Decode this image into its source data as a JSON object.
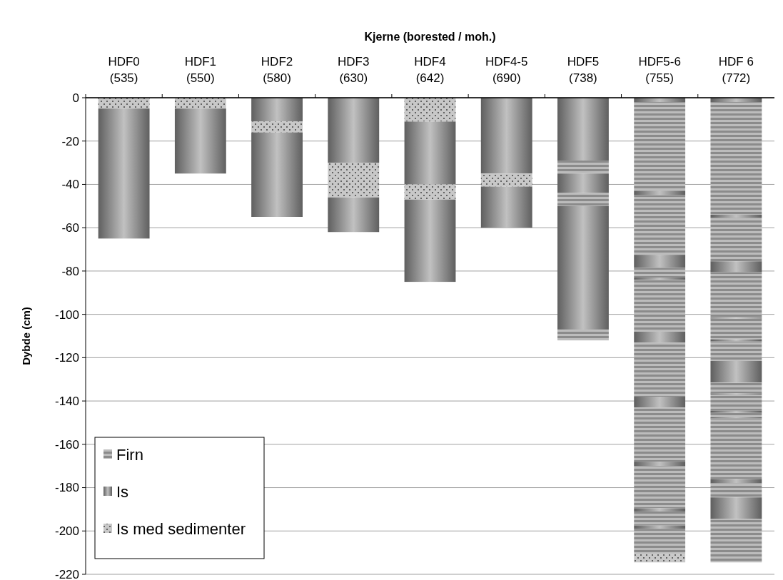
{
  "chart_data": {
    "type": "bar",
    "stacked": true,
    "xlabel": "Kjerne (borested / moh.)",
    "ylabel": "Dybde (cm)",
    "categories": [
      "HDF0\n(535)",
      "HDF1\n(550)",
      "HDF2\n(580)",
      "HDF3\n(630)",
      "HDF4\n(642)",
      "HDF4-5\n(690)",
      "HDF5\n(738)",
      "HDF5-6\n(755)",
      "HDF 6\n(772)"
    ],
    "ylim": [
      -220,
      0
    ],
    "yticks": [
      -220,
      -200,
      -180,
      -160,
      -140,
      -120,
      -100,
      -80,
      -60,
      -40,
      -20,
      0
    ],
    "grid": "y",
    "legend": "bottom left",
    "series": [
      {
        "name": "Firn",
        "color": "#a6a6a6",
        "values": [
          null,
          null,
          null,
          null,
          null,
          null,
          null,
          null,
          null
        ]
      },
      {
        "name": "Is",
        "color": "#8c8c8c",
        "values": [
          null,
          null,
          null,
          null,
          null,
          null,
          null,
          null,
          null
        ]
      },
      {
        "name": "Is med sedimenter",
        "color": "#c8c8c8",
        "values": [
          null,
          null,
          null,
          null,
          null,
          null,
          null,
          null,
          null
        ]
      },
      {
        "values": [
          -5,
          -5,
          -11,
          -30,
          -11,
          -35,
          -29,
          -2,
          -2
        ],
        "colors": [
          "#c8c8c8",
          "#c8c8c8",
          "#8c8c8c",
          "#8c8c8c",
          "#c8c8c8",
          "#8c8c8c",
          "#8c8c8c",
          "#8c8c8c",
          "#8c8c8c"
        ]
      },
      {
        "values": [
          -60,
          -30,
          -5,
          -16,
          -29,
          -6,
          -6,
          -41,
          -52
        ],
        "colors": [
          "#8c8c8c",
          "#8c8c8c",
          "#c8c8c8",
          "#c8c8c8",
          "#8c8c8c",
          "#c8c8c8",
          "#a6a6a6",
          "#a6a6a6",
          "#a6a6a6"
        ]
      },
      {
        "values": [
          null,
          null,
          -39,
          -16,
          -7,
          -19,
          -9,
          -2,
          -1.5
        ],
        "colors": [
          null,
          null,
          "#8c8c8c",
          "#8c8c8c",
          "#c8c8c8",
          "#8c8c8c",
          "#8c8c8c",
          "#8c8c8c",
          "#8c8c8c"
        ]
      },
      {
        "values": [
          null,
          null,
          null,
          null,
          -38,
          null,
          -6,
          -27.5,
          -20
        ],
        "colors": [
          null,
          null,
          null,
          null,
          "#8c8c8c",
          null,
          "#a6a6a6",
          "#a6a6a6",
          "#a6a6a6"
        ]
      },
      {
        "values": [
          null,
          null,
          null,
          null,
          null,
          null,
          -57,
          -6,
          -5
        ],
        "colors": [
          null,
          null,
          null,
          null,
          null,
          null,
          "#8c8c8c",
          "#8c8c8c",
          "#8c8c8c"
        ]
      },
      {
        "values": [
          null,
          null,
          null,
          null,
          null,
          null,
          -5,
          -4.5,
          -21
        ],
        "colors": [
          null,
          null,
          null,
          null,
          null,
          null,
          "#a6a6a6",
          "#a6a6a6",
          "#a6a6a6"
        ]
      },
      {
        "values": [
          null,
          null,
          null,
          null,
          null,
          null,
          null,
          -1,
          -0.5
        ],
        "colors": [
          null,
          null,
          null,
          null,
          null,
          null,
          null,
          "#8c8c8c",
          "#8c8c8c"
        ]
      },
      {
        "values": [
          null,
          null,
          null,
          null,
          null,
          null,
          null,
          -24,
          -9.5
        ],
        "colors": [
          null,
          null,
          null,
          null,
          null,
          null,
          null,
          "#a6a6a6",
          "#a6a6a6"
        ]
      },
      {
        "values": [
          null,
          null,
          null,
          null,
          null,
          null,
          null,
          -5,
          -1
        ],
        "colors": [
          null,
          null,
          null,
          null,
          null,
          null,
          null,
          "#8c8c8c",
          "#8c8c8c"
        ]
      },
      {
        "values": [
          null,
          null,
          null,
          null,
          null,
          null,
          null,
          -25,
          -9
        ],
        "colors": [
          null,
          null,
          null,
          null,
          null,
          null,
          null,
          "#a6a6a6",
          "#a6a6a6"
        ]
      },
      {
        "values": [
          null,
          null,
          null,
          null,
          null,
          null,
          null,
          -5,
          -10
        ],
        "colors": [
          null,
          null,
          null,
          null,
          null,
          null,
          null,
          "#8c8c8c",
          "#8c8c8c"
        ]
      },
      {
        "values": [
          null,
          null,
          null,
          null,
          null,
          null,
          null,
          -25,
          -5
        ],
        "colors": [
          null,
          null,
          null,
          null,
          null,
          null,
          null,
          "#a6a6a6",
          "#a6a6a6"
        ]
      },
      {
        "values": [
          null,
          null,
          null,
          null,
          null,
          null,
          null,
          -2,
          -0.5
        ],
        "colors": [
          null,
          null,
          null,
          null,
          null,
          null,
          null,
          "#8c8c8c",
          "#8c8c8c"
        ]
      },
      {
        "values": [
          null,
          null,
          null,
          null,
          null,
          null,
          null,
          -19.5,
          -7.5
        ],
        "colors": [
          null,
          null,
          null,
          null,
          null,
          null,
          null,
          "#a6a6a6",
          "#a6a6a6"
        ]
      },
      {
        "values": [
          null,
          null,
          null,
          null,
          null,
          null,
          null,
          -1.5,
          -1
        ],
        "colors": [
          null,
          null,
          null,
          null,
          null,
          null,
          null,
          "#8c8c8c",
          "#8c8c8c"
        ]
      },
      {
        "values": [
          null,
          null,
          null,
          null,
          null,
          null,
          null,
          -6.5,
          -2
        ],
        "colors": [
          null,
          null,
          null,
          null,
          null,
          null,
          null,
          "#a6a6a6",
          "#a6a6a6"
        ]
      },
      {
        "values": [
          null,
          null,
          null,
          null,
          null,
          null,
          null,
          -1.5,
          -0.5
        ],
        "colors": [
          null,
          null,
          null,
          null,
          null,
          null,
          null,
          "#8c8c8c",
          "#8c8c8c"
        ]
      },
      {
        "values": [
          null,
          null,
          null,
          null,
          null,
          null,
          null,
          -11.5,
          -28
        ],
        "colors": [
          null,
          null,
          null,
          null,
          null,
          null,
          null,
          "#a6a6a6",
          "#a6a6a6"
        ]
      },
      {
        "values": [
          null,
          null,
          null,
          null,
          null,
          null,
          null,
          -4,
          -2
        ],
        "colors": [
          null,
          null,
          null,
          null,
          null,
          null,
          null,
          "#c8c8c8",
          "#8c8c8c"
        ]
      },
      {
        "values": [
          null,
          null,
          null,
          null,
          null,
          null,
          null,
          null,
          -6.5
        ],
        "colors": [
          null,
          null,
          null,
          null,
          null,
          null,
          null,
          null,
          "#a6a6a6"
        ]
      },
      {
        "values": [
          null,
          null,
          null,
          null,
          null,
          null,
          null,
          null,
          -10
        ],
        "colors": [
          null,
          null,
          null,
          null,
          null,
          null,
          null,
          null,
          "#8c8c8c"
        ]
      },
      {
        "values": [
          null,
          null,
          null,
          null,
          null,
          null,
          null,
          null,
          -20
        ],
        "colors": [
          null,
          null,
          null,
          null,
          null,
          null,
          null,
          null,
          "#a6a6a6"
        ]
      }
    ]
  }
}
